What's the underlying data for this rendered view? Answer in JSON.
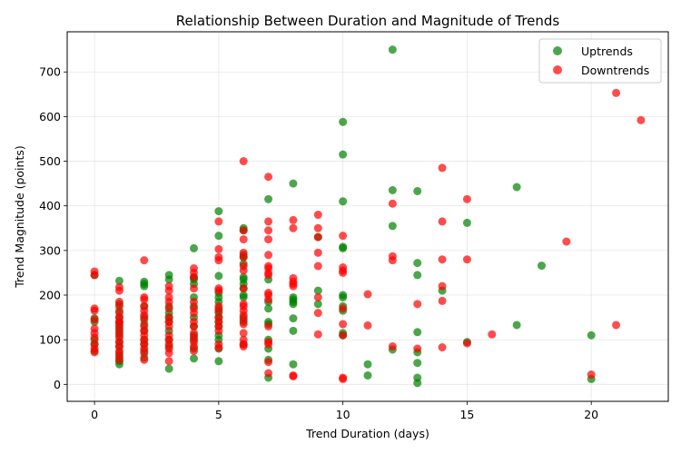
{
  "chart_data": {
    "type": "scatter",
    "title": "Relationship Between Duration and Magnitude of Trends",
    "xlabel": "Trend Duration (days)",
    "ylabel": "Trend Magnitude (points)",
    "xlim": [
      -1.1,
      23.1
    ],
    "ylim": [
      -38,
      790
    ],
    "xticks": [
      0,
      5,
      10,
      15,
      20
    ],
    "yticks": [
      0,
      100,
      200,
      300,
      400,
      500,
      600,
      700
    ],
    "grid": true,
    "legend_position": "top-right",
    "series": [
      {
        "name": "Uptrends",
        "color": "#008000",
        "points": [
          [
            0,
            245
          ],
          [
            0,
            148
          ],
          [
            0,
            140
          ],
          [
            0,
            100
          ],
          [
            0,
            90
          ],
          [
            0,
            75
          ],
          [
            1,
            232
          ],
          [
            1,
            180
          ],
          [
            1,
            165
          ],
          [
            1,
            150
          ],
          [
            1,
            140
          ],
          [
            1,
            130
          ],
          [
            1,
            120
          ],
          [
            1,
            110
          ],
          [
            1,
            95
          ],
          [
            1,
            85
          ],
          [
            1,
            70
          ],
          [
            1,
            60
          ],
          [
            1,
            52
          ],
          [
            1,
            45
          ],
          [
            2,
            230
          ],
          [
            2,
            225
          ],
          [
            2,
            220
          ],
          [
            2,
            175
          ],
          [
            2,
            150
          ],
          [
            2,
            135
          ],
          [
            2,
            120
          ],
          [
            2,
            100
          ],
          [
            2,
            90
          ],
          [
            2,
            75
          ],
          [
            2,
            60
          ],
          [
            3,
            245
          ],
          [
            3,
            235
          ],
          [
            3,
            175
          ],
          [
            3,
            160
          ],
          [
            3,
            150
          ],
          [
            3,
            140
          ],
          [
            3,
            120
          ],
          [
            3,
            100
          ],
          [
            3,
            85
          ],
          [
            3,
            35
          ],
          [
            4,
            305
          ],
          [
            4,
            240
          ],
          [
            4,
            235
          ],
          [
            4,
            225
          ],
          [
            4,
            195
          ],
          [
            4,
            175
          ],
          [
            4,
            150
          ],
          [
            4,
            130
          ],
          [
            4,
            110
          ],
          [
            4,
            100
          ],
          [
            4,
            80
          ],
          [
            4,
            58
          ],
          [
            5,
            388
          ],
          [
            5,
            333
          ],
          [
            5,
            243
          ],
          [
            5,
            205
          ],
          [
            5,
            195
          ],
          [
            5,
            185
          ],
          [
            5,
            170
          ],
          [
            5,
            160
          ],
          [
            5,
            150
          ],
          [
            5,
            140
          ],
          [
            5,
            130
          ],
          [
            5,
            110
          ],
          [
            5,
            100
          ],
          [
            5,
            80
          ],
          [
            5,
            52
          ],
          [
            6,
            350
          ],
          [
            6,
            345
          ],
          [
            6,
            290
          ],
          [
            6,
            285
          ],
          [
            6,
            270
          ],
          [
            6,
            240
          ],
          [
            6,
            235
          ],
          [
            6,
            225
          ],
          [
            6,
            215
          ],
          [
            6,
            200
          ],
          [
            6,
            195
          ],
          [
            6,
            150
          ],
          [
            6,
            140
          ],
          [
            6,
            90
          ],
          [
            7,
            415
          ],
          [
            7,
            235
          ],
          [
            7,
            185
          ],
          [
            7,
            170
          ],
          [
            7,
            140
          ],
          [
            7,
            135
          ],
          [
            7,
            100
          ],
          [
            7,
            80
          ],
          [
            7,
            55
          ],
          [
            7,
            15
          ],
          [
            8,
            450
          ],
          [
            8,
            195
          ],
          [
            8,
            190
          ],
          [
            8,
            185
          ],
          [
            8,
            180
          ],
          [
            8,
            148
          ],
          [
            8,
            120
          ],
          [
            8,
            45
          ],
          [
            9,
            330
          ],
          [
            9,
            210
          ],
          [
            9,
            180
          ],
          [
            10,
            588
          ],
          [
            10,
            515
          ],
          [
            10,
            410
          ],
          [
            10,
            308
          ],
          [
            10,
            305
          ],
          [
            10,
            200
          ],
          [
            10,
            195
          ],
          [
            10,
            175
          ],
          [
            10,
            165
          ],
          [
            10,
            115
          ],
          [
            10,
            110
          ],
          [
            11,
            45
          ],
          [
            11,
            20
          ],
          [
            12,
            750
          ],
          [
            12,
            435
          ],
          [
            12,
            355
          ],
          [
            12,
            78
          ],
          [
            13,
            433
          ],
          [
            13,
            272
          ],
          [
            13,
            245
          ],
          [
            13,
            117
          ],
          [
            13,
            72
          ],
          [
            13,
            48
          ],
          [
            13,
            15
          ],
          [
            13,
            3
          ],
          [
            14,
            210
          ],
          [
            15,
            362
          ],
          [
            15,
            95
          ],
          [
            17,
            442
          ],
          [
            17,
            133
          ],
          [
            18,
            266
          ],
          [
            20,
            110
          ],
          [
            20,
            12
          ]
        ]
      },
      {
        "name": "Downtrends",
        "color": "#ff0000",
        "points": [
          [
            0,
            253
          ],
          [
            0,
            245
          ],
          [
            0,
            170
          ],
          [
            0,
            165
          ],
          [
            0,
            145
          ],
          [
            0,
            125
          ],
          [
            0,
            115
          ],
          [
            0,
            105
          ],
          [
            0,
            90
          ],
          [
            0,
            80
          ],
          [
            0,
            72
          ],
          [
            1,
            218
          ],
          [
            1,
            210
          ],
          [
            1,
            185
          ],
          [
            1,
            175
          ],
          [
            1,
            160
          ],
          [
            1,
            150
          ],
          [
            1,
            140
          ],
          [
            1,
            135
          ],
          [
            1,
            125
          ],
          [
            1,
            115
          ],
          [
            1,
            105
          ],
          [
            1,
            95
          ],
          [
            1,
            85
          ],
          [
            1,
            75
          ],
          [
            1,
            65
          ],
          [
            1,
            55
          ],
          [
            2,
            278
          ],
          [
            2,
            195
          ],
          [
            2,
            190
          ],
          [
            2,
            175
          ],
          [
            2,
            165
          ],
          [
            2,
            155
          ],
          [
            2,
            145
          ],
          [
            2,
            130
          ],
          [
            2,
            120
          ],
          [
            2,
            110
          ],
          [
            2,
            100
          ],
          [
            2,
            90
          ],
          [
            2,
            80
          ],
          [
            2,
            70
          ],
          [
            2,
            55
          ],
          [
            3,
            220
          ],
          [
            3,
            210
          ],
          [
            3,
            195
          ],
          [
            3,
            185
          ],
          [
            3,
            170
          ],
          [
            3,
            150
          ],
          [
            3,
            140
          ],
          [
            3,
            130
          ],
          [
            3,
            110
          ],
          [
            3,
            100
          ],
          [
            3,
            90
          ],
          [
            3,
            80
          ],
          [
            3,
            70
          ],
          [
            3,
            52
          ],
          [
            4,
            260
          ],
          [
            4,
            250
          ],
          [
            4,
            240
          ],
          [
            4,
            215
          ],
          [
            4,
            185
          ],
          [
            4,
            170
          ],
          [
            4,
            160
          ],
          [
            4,
            140
          ],
          [
            4,
            130
          ],
          [
            4,
            115
          ],
          [
            4,
            105
          ],
          [
            4,
            95
          ],
          [
            4,
            85
          ],
          [
            4,
            75
          ],
          [
            5,
            365
          ],
          [
            5,
            303
          ],
          [
            5,
            285
          ],
          [
            5,
            278
          ],
          [
            5,
            215
          ],
          [
            5,
            210
          ],
          [
            5,
            175
          ],
          [
            5,
            165
          ],
          [
            5,
            150
          ],
          [
            5,
            140
          ],
          [
            5,
            130
          ],
          [
            5,
            120
          ],
          [
            5,
            90
          ],
          [
            5,
            82
          ],
          [
            6,
            500
          ],
          [
            6,
            345
          ],
          [
            6,
            325
          ],
          [
            6,
            295
          ],
          [
            6,
            285
          ],
          [
            6,
            265
          ],
          [
            6,
            255
          ],
          [
            6,
            215
          ],
          [
            6,
            180
          ],
          [
            6,
            175
          ],
          [
            6,
            165
          ],
          [
            6,
            155
          ],
          [
            6,
            145
          ],
          [
            6,
            135
          ],
          [
            6,
            115
          ],
          [
            6,
            100
          ],
          [
            6,
            90
          ],
          [
            6,
            85
          ],
          [
            7,
            465
          ],
          [
            7,
            365
          ],
          [
            7,
            345
          ],
          [
            7,
            325
          ],
          [
            7,
            290
          ],
          [
            7,
            265
          ],
          [
            7,
            260
          ],
          [
            7,
            250
          ],
          [
            7,
            245
          ],
          [
            7,
            205
          ],
          [
            7,
            200
          ],
          [
            7,
            190
          ],
          [
            7,
            130
          ],
          [
            7,
            95
          ],
          [
            7,
            90
          ],
          [
            7,
            50
          ],
          [
            7,
            25
          ],
          [
            8,
            368
          ],
          [
            8,
            350
          ],
          [
            8,
            238
          ],
          [
            8,
            230
          ],
          [
            8,
            225
          ],
          [
            8,
            220
          ],
          [
            8,
            20
          ],
          [
            8,
            18
          ],
          [
            9,
            380
          ],
          [
            9,
            350
          ],
          [
            9,
            330
          ],
          [
            9,
            295
          ],
          [
            9,
            265
          ],
          [
            9,
            195
          ],
          [
            9,
            160
          ],
          [
            9,
            112
          ],
          [
            10,
            333
          ],
          [
            10,
            262
          ],
          [
            10,
            255
          ],
          [
            10,
            250
          ],
          [
            10,
            170
          ],
          [
            10,
            135
          ],
          [
            10,
            110
          ],
          [
            10,
            15
          ],
          [
            10,
            12
          ],
          [
            11,
            202
          ],
          [
            11,
            132
          ],
          [
            12,
            405
          ],
          [
            12,
            287
          ],
          [
            12,
            278
          ],
          [
            12,
            85
          ],
          [
            13,
            180
          ],
          [
            13,
            80
          ],
          [
            14,
            485
          ],
          [
            14,
            365
          ],
          [
            14,
            280
          ],
          [
            14,
            220
          ],
          [
            14,
            187
          ],
          [
            14,
            83
          ],
          [
            15,
            415
          ],
          [
            15,
            280
          ],
          [
            15,
            92
          ],
          [
            16,
            112
          ],
          [
            19,
            320
          ],
          [
            20,
            22
          ],
          [
            21,
            653
          ],
          [
            21,
            133
          ],
          [
            22,
            592
          ]
        ]
      }
    ]
  }
}
